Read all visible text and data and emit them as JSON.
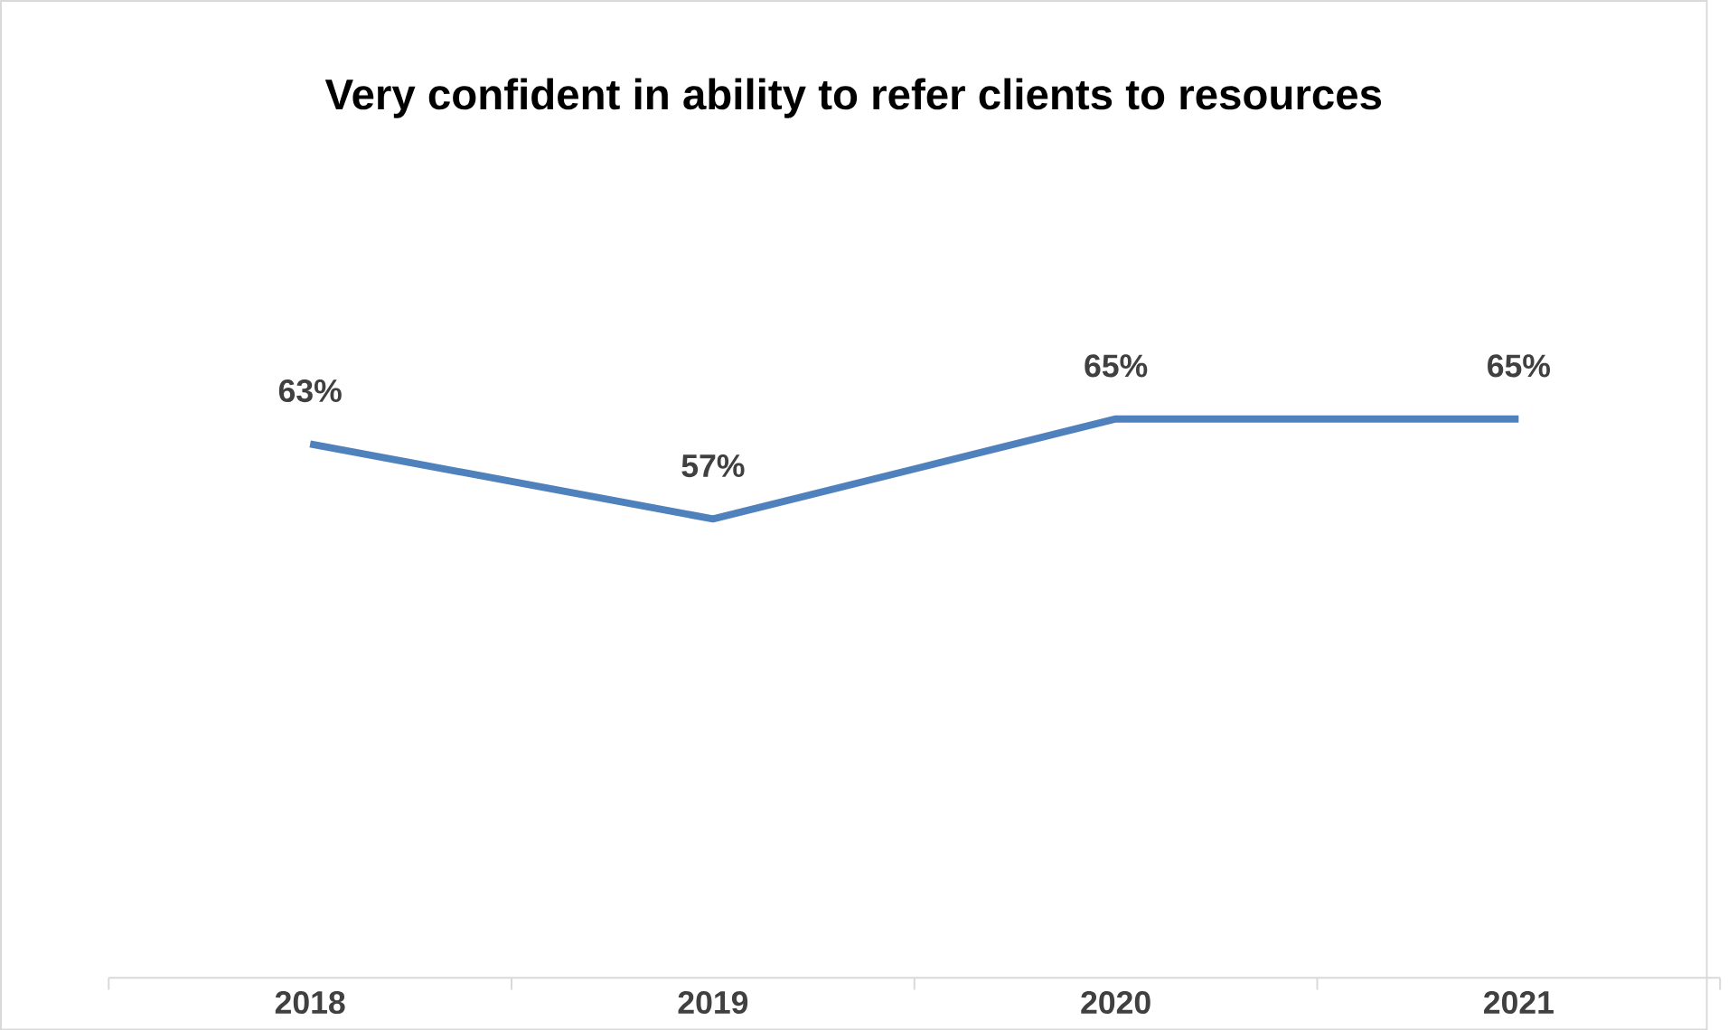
{
  "chart_data": {
    "type": "line",
    "title": "Very confident in ability to refer clients to resources",
    "categories": [
      "2018",
      "2019",
      "2020",
      "2021"
    ],
    "values": [
      63,
      57,
      65,
      65
    ],
    "value_labels": [
      "63%",
      "57%",
      "65%",
      "65%"
    ],
    "color": "#4f81bd",
    "tick_labels": "x"
  }
}
